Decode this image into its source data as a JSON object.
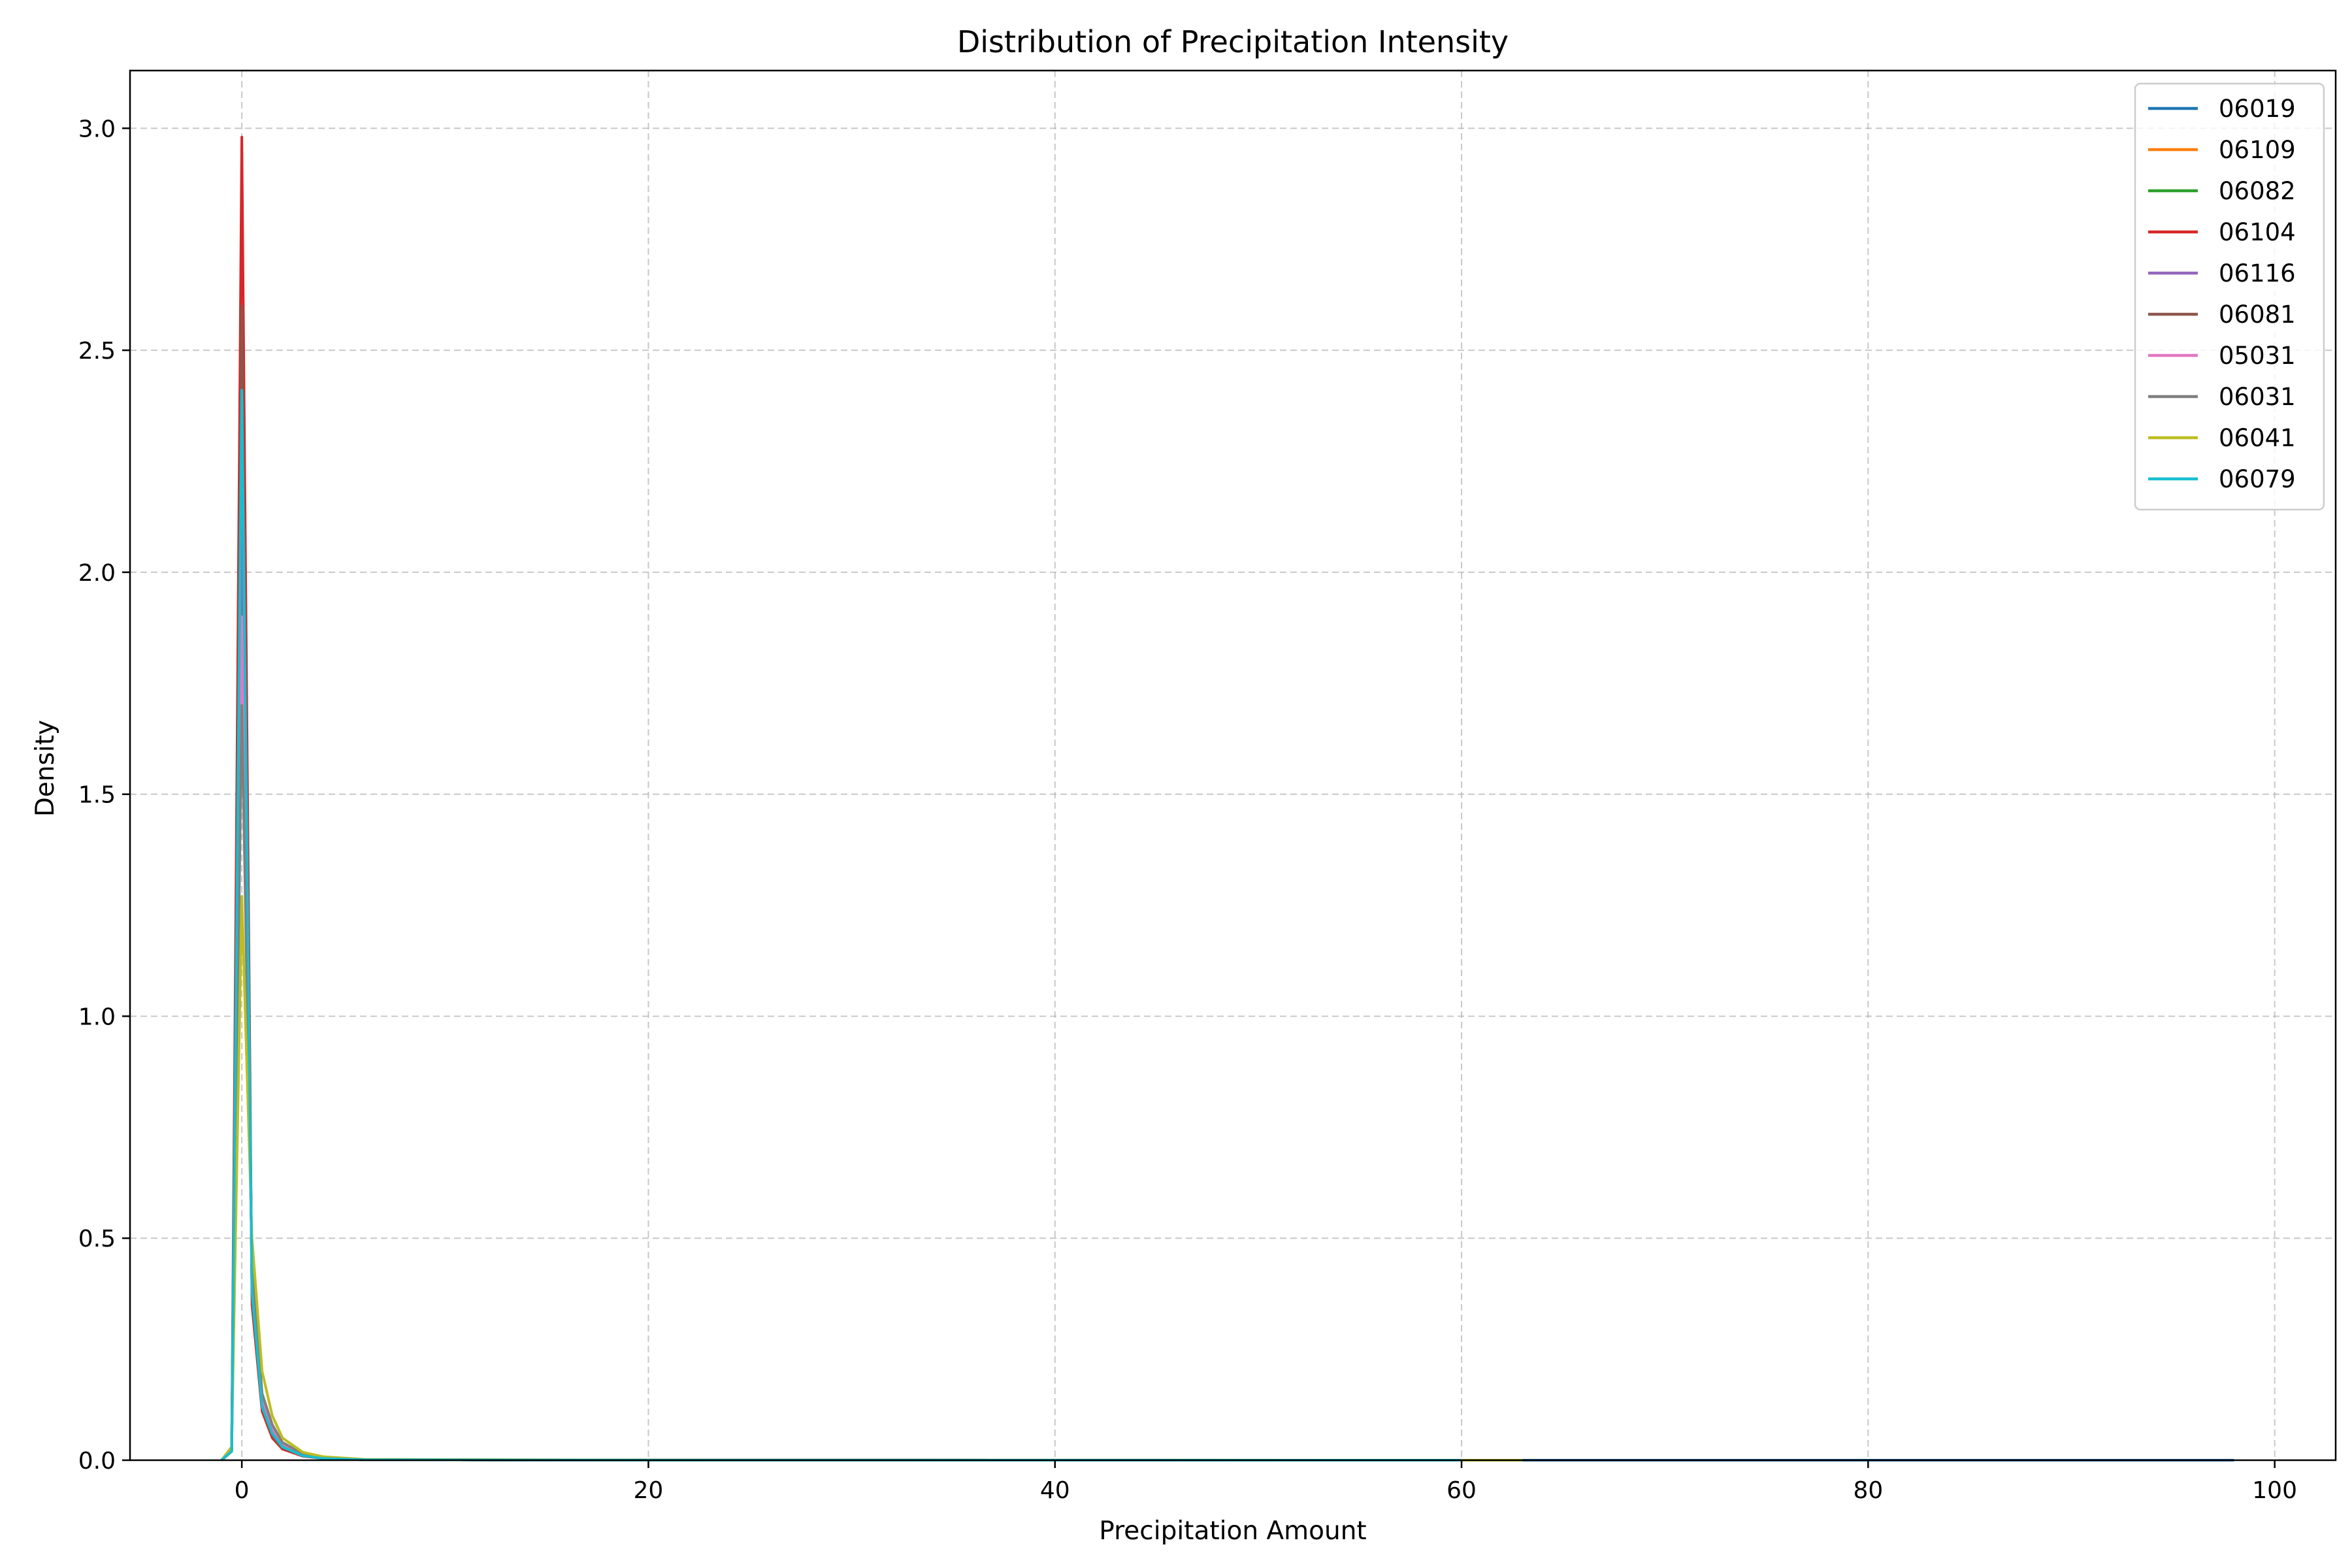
{
  "chart_data": {
    "type": "line",
    "title": "Distribution of Precipitation Intensity",
    "xlabel": "Precipitation Amount",
    "ylabel": "Density",
    "xlim": [
      -5.5,
      103
    ],
    "ylim": [
      0,
      3.13
    ],
    "xticks": [
      0,
      20,
      40,
      60,
      80,
      100
    ],
    "xtick_labels": [
      "0",
      "20",
      "40",
      "60",
      "80",
      "100"
    ],
    "yticks": [
      0.0,
      0.5,
      1.0,
      1.5,
      2.0,
      2.5,
      3.0
    ],
    "ytick_labels": [
      "0.0",
      "0.5",
      "1.0",
      "1.5",
      "2.0",
      "2.5",
      "3.0"
    ],
    "grid": true,
    "legend_position": "top-right",
    "series": [
      {
        "name": "06019",
        "color": "#1f77b4",
        "x": [
          -1,
          -0.5,
          0,
          0.5,
          1,
          1.5,
          2,
          3,
          4,
          6,
          20,
          98
        ],
        "y": [
          0,
          0.02,
          2.45,
          0.38,
          0.12,
          0.06,
          0.03,
          0.01,
          0.004,
          0.001,
          0.0002,
          0
        ]
      },
      {
        "name": "06109",
        "color": "#ff7f0e",
        "x": [
          -1,
          -0.5,
          0,
          0.5,
          1,
          1.5,
          2,
          3,
          4,
          6,
          20,
          60
        ],
        "y": [
          0,
          0.02,
          2.3,
          0.4,
          0.13,
          0.06,
          0.03,
          0.01,
          0.004,
          0.001,
          0.0002,
          0
        ]
      },
      {
        "name": "06082",
        "color": "#2ca02c",
        "x": [
          -1,
          -0.5,
          0,
          0.5,
          1,
          1.5,
          2,
          3,
          4,
          6,
          20,
          60
        ],
        "y": [
          0,
          0.02,
          2.1,
          0.42,
          0.14,
          0.07,
          0.035,
          0.012,
          0.005,
          0.001,
          0.0002,
          0
        ]
      },
      {
        "name": "06104",
        "color": "#d62728",
        "x": [
          -1,
          -0.5,
          0,
          0.5,
          1,
          1.5,
          2,
          3,
          4,
          6,
          20,
          60
        ],
        "y": [
          0,
          0.02,
          2.98,
          0.35,
          0.11,
          0.05,
          0.025,
          0.009,
          0.004,
          0.001,
          0.0002,
          0
        ]
      },
      {
        "name": "06116",
        "color": "#9467bd",
        "x": [
          -1,
          -0.5,
          0,
          0.5,
          1,
          1.5,
          2,
          3,
          4,
          6,
          20,
          60
        ],
        "y": [
          0,
          0.02,
          2.2,
          0.4,
          0.13,
          0.06,
          0.03,
          0.01,
          0.004,
          0.001,
          0.0002,
          0
        ]
      },
      {
        "name": "06081",
        "color": "#8c564b",
        "x": [
          -1,
          -0.5,
          0,
          0.5,
          1,
          1.5,
          2,
          3,
          4,
          6,
          20,
          60
        ],
        "y": [
          0,
          0.02,
          2.6,
          0.37,
          0.12,
          0.055,
          0.028,
          0.01,
          0.004,
          0.001,
          0.0002,
          0
        ]
      },
      {
        "name": "05031",
        "color": "#e377c2",
        "x": [
          -1,
          -0.5,
          0,
          0.5,
          1,
          1.5,
          2,
          3,
          4,
          6,
          20,
          60
        ],
        "y": [
          0,
          0.02,
          1.9,
          0.42,
          0.14,
          0.07,
          0.035,
          0.012,
          0.005,
          0.001,
          0.0002,
          0
        ]
      },
      {
        "name": "06031",
        "color": "#7f7f7f",
        "x": [
          -1,
          -0.5,
          0,
          0.5,
          1,
          1.5,
          2,
          3,
          4,
          6,
          20,
          60
        ],
        "y": [
          0,
          0.02,
          1.7,
          0.44,
          0.15,
          0.08,
          0.04,
          0.014,
          0.006,
          0.001,
          0.0002,
          0
        ]
      },
      {
        "name": "06041",
        "color": "#bcbd22",
        "x": [
          -1,
          -0.5,
          0,
          0.5,
          1,
          1.5,
          2,
          3,
          4,
          6,
          20,
          63
        ],
        "y": [
          0,
          0.03,
          1.27,
          0.5,
          0.2,
          0.1,
          0.05,
          0.018,
          0.008,
          0.002,
          0.0003,
          0
        ]
      },
      {
        "name": "06079",
        "color": "#17becf",
        "x": [
          -1,
          -0.5,
          0,
          0.5,
          1,
          1.5,
          2,
          3,
          4,
          6,
          20,
          60
        ],
        "y": [
          0,
          0.02,
          2.41,
          0.38,
          0.12,
          0.06,
          0.03,
          0.01,
          0.004,
          0.001,
          0.0002,
          0
        ]
      }
    ]
  }
}
